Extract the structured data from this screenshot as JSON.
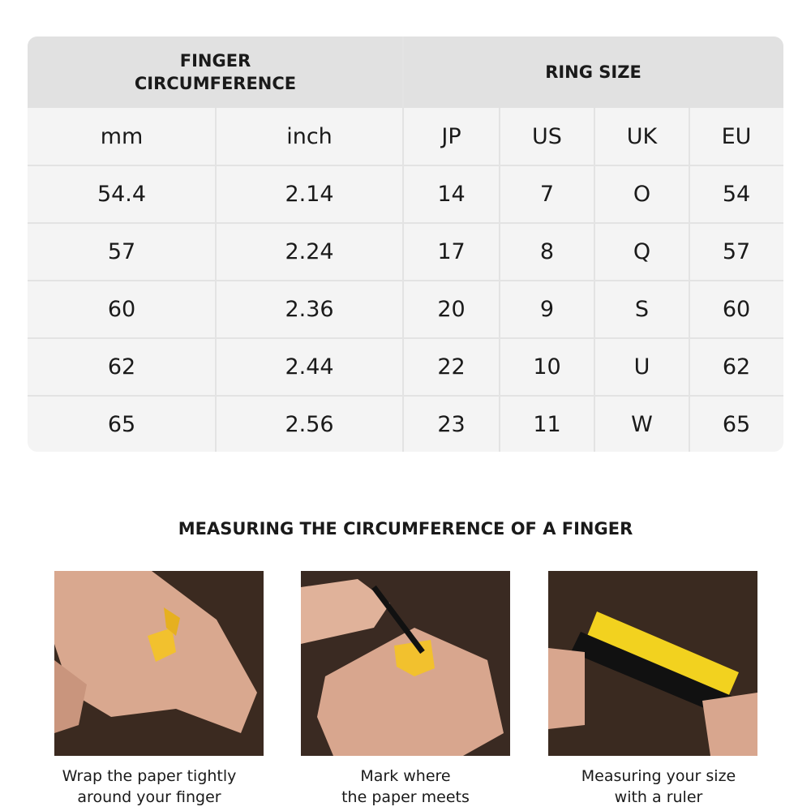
{
  "table": {
    "header": [
      [
        "FINGER",
        "CIRCUMFERENCE"
      ],
      [
        "RING SIZE"
      ]
    ],
    "columns": [
      "mm",
      "inch",
      "JP",
      "US",
      "UK",
      "EU"
    ],
    "rows": [
      [
        "54.4",
        "2.14",
        "14",
        "7",
        "O",
        "54"
      ],
      [
        "57",
        "2.24",
        "17",
        "8",
        "Q",
        "57"
      ],
      [
        "60",
        "2.36",
        "20",
        "9",
        "S",
        "60"
      ],
      [
        "62",
        "2.44",
        "22",
        "10",
        "U",
        "62"
      ],
      [
        "65",
        "2.56",
        "23",
        "11",
        "W",
        "65"
      ]
    ]
  },
  "section": {
    "title": "MEASURING THE CIRCUMFERENCE OF A FINGER",
    "captions": [
      [
        "Wrap the paper tightly",
        "around your finger"
      ],
      [
        "Mark where",
        "the paper meets"
      ],
      [
        "Measuring your size",
        "with a ruler"
      ]
    ]
  }
}
